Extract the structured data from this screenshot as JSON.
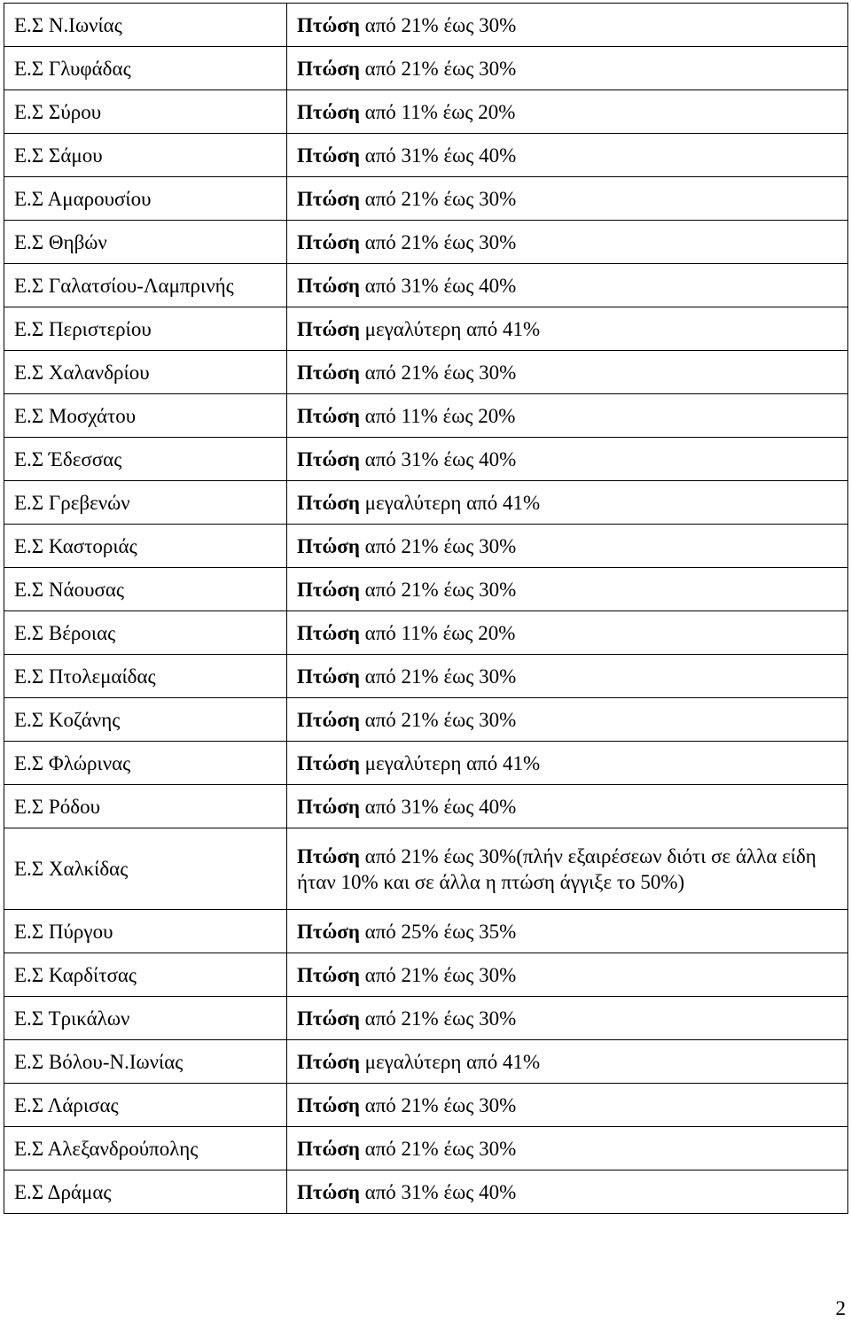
{
  "rows": [
    {
      "station": "Ε.Σ Ν.Ιωνίας",
      "keyword": "Πτώση",
      "value": " από 21% έως 30%"
    },
    {
      "station": "Ε.Σ Γλυφάδας",
      "keyword": "Πτώση",
      "value": " από 21% έως 30%"
    },
    {
      "station": "Ε.Σ Σύρου",
      "keyword": "Πτώση",
      "value": " από 11% έως 20%"
    },
    {
      "station": "Ε.Σ Σάμου",
      "keyword": "Πτώση",
      "value": " από 31% έως 40%"
    },
    {
      "station": "Ε.Σ Αμαρουσίου",
      "keyword": "Πτώση",
      "value": " από 21% έως 30%"
    },
    {
      "station": "Ε.Σ Θηβών",
      "keyword": "Πτώση",
      "value": " από 21% έως 30%"
    },
    {
      "station": "Ε.Σ Γαλατσίου-Λαμπρινής",
      "keyword": "Πτώση",
      "value": " από 31% έως 40%"
    },
    {
      "station": "Ε.Σ Περιστερίου",
      "keyword": "Πτώση",
      "value": " μεγαλύτερη από 41%"
    },
    {
      "station": "Ε.Σ Χαλανδρίου",
      "keyword": "Πτώση",
      "value": " από 21% έως 30%"
    },
    {
      "station": "Ε.Σ Μοσχάτου",
      "keyword": "Πτώση",
      "value": " από 11% έως 20%"
    },
    {
      "station": "Ε.Σ Έδεσσας",
      "keyword": "Πτώση",
      "value": " από 31% έως 40%"
    },
    {
      "station": "Ε.Σ Γρεβενών",
      "keyword": "Πτώση",
      "value": " μεγαλύτερη από 41%"
    },
    {
      "station": "Ε.Σ Καστοριάς",
      "keyword": "Πτώση",
      "value": " από 21% έως 30%"
    },
    {
      "station": "Ε.Σ Νάουσας",
      "keyword": "Πτώση",
      "value": " από 21% έως 30%"
    },
    {
      "station": "Ε.Σ Βέροιας",
      "keyword": "Πτώση",
      "value": " από 11% έως 20%"
    },
    {
      "station": "Ε.Σ Πτολεμαίδας",
      "keyword": "Πτώση",
      "value": " από 21% έως 30%"
    },
    {
      "station": "Ε.Σ Κοζάνης",
      "keyword": "Πτώση",
      "value": " από 21% έως 30%"
    },
    {
      "station": "Ε.Σ Φλώρινας",
      "keyword": "Πτώση",
      "value": " μεγαλύτερη από 41%"
    },
    {
      "station": "Ε.Σ Ρόδου",
      "keyword": "Πτώση",
      "value": " από 31% έως 40%"
    },
    {
      "station": "Ε.Σ Χαλκίδας",
      "keyword": "Πτώση",
      "value": " από 21% έως 30%(πλήν εξαιρέσεων διότι σε άλλα είδη ήταν 10% και σε άλλα η πτώση άγγιξε το 50%)"
    },
    {
      "station": "Ε.Σ Πύργου",
      "keyword": "Πτώση",
      "value": " από 25% έως 35%"
    },
    {
      "station": "Ε.Σ Καρδίτσας",
      "keyword": "Πτώση",
      "value": " από 21% έως 30%"
    },
    {
      "station": "Ε.Σ Τρικάλων",
      "keyword": "Πτώση",
      "value": " από 21% έως 30%"
    },
    {
      "station": "Ε.Σ Βόλου-Ν.Ιωνίας",
      "keyword": "Πτώση",
      "value": " μεγαλύτερη από 41%"
    },
    {
      "station": "Ε.Σ Λάρισας",
      "keyword": "Πτώση",
      "value": " από 21% έως 30%"
    },
    {
      "station": "Ε.Σ Αλεξανδρούπολης",
      "keyword": "Πτώση",
      "value": " από 21% έως 30%"
    },
    {
      "station": "Ε.Σ Δράμας",
      "keyword": "Πτώση",
      "value": " από 31% έως 40%"
    }
  ],
  "page_number": "2"
}
